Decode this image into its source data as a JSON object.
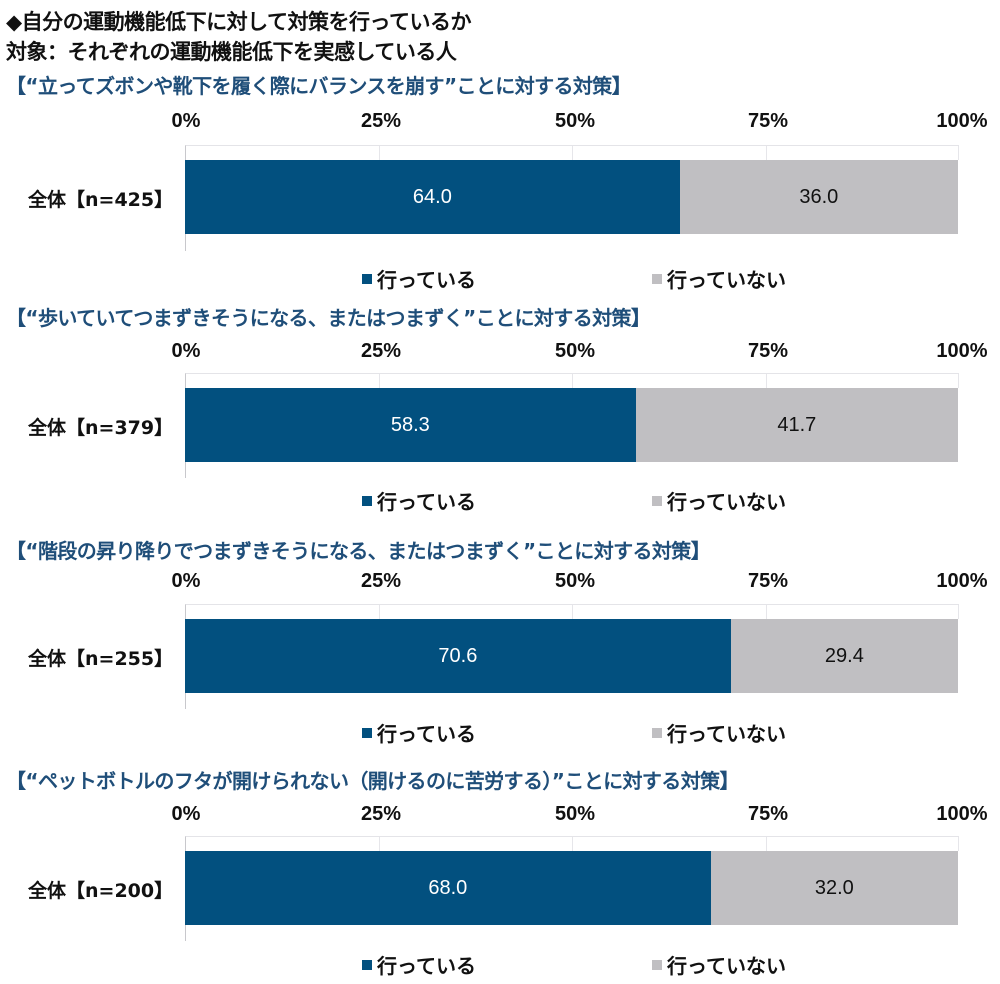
{
  "header": {
    "title": "◆自分の運動機能低下に対して対策を行っているか",
    "subtitle": "対象：それぞれの運動機能低下を実感している人"
  },
  "colors": {
    "doing": "#02507F",
    "not_doing": "#C0BFC2",
    "section_title": "#1F4E79"
  },
  "axis": {
    "ticks": [
      "0%",
      "25%",
      "50%",
      "75%",
      "100%"
    ]
  },
  "legend": {
    "doing": "行っている",
    "not_doing": "行っていない"
  },
  "sections": [
    {
      "title": "【“立ってズボンや靴下を履く際にバランスを崩す”ことに対する対策】",
      "row_label": "全体【n=425】",
      "doing": "64.0",
      "not_doing": "36.0"
    },
    {
      "title": "【“歩いていてつまずきそうになる、またはつまずく”ことに対する対策】",
      "row_label": "全体【n=379】",
      "doing": "58.3",
      "not_doing": "41.7"
    },
    {
      "title": "【“階段の昇り降りでつまずきそうになる、またはつまずく”ことに対する対策】",
      "row_label": "全体【n=255】",
      "doing": "70.6",
      "not_doing": "29.4"
    },
    {
      "title": "【“ペットボトルのフタが開けられない（開けるのに苦労する）”ことに対する対策】",
      "row_label": "全体【n=200】",
      "doing": "68.0",
      "not_doing": "32.0"
    }
  ],
  "chart_data": [
    {
      "type": "bar",
      "orientation": "horizontal",
      "stacked": true,
      "title": "“立ってズボンや靴下を履く際にバランスを崩す”ことに対する対策",
      "categories": [
        "全体【n=425】"
      ],
      "series": [
        {
          "name": "行っている",
          "values": [
            64.0
          ]
        },
        {
          "name": "行っていない",
          "values": [
            36.0
          ]
        }
      ],
      "xlim": [
        0,
        100
      ],
      "xticks": [
        "0%",
        "25%",
        "50%",
        "75%",
        "100%"
      ],
      "legend_position": "bottom"
    },
    {
      "type": "bar",
      "orientation": "horizontal",
      "stacked": true,
      "title": "“歩いていてつまずきそうになる、またはつまずく”ことに対する対策",
      "categories": [
        "全体【n=379】"
      ],
      "series": [
        {
          "name": "行っている",
          "values": [
            58.3
          ]
        },
        {
          "name": "行っていない",
          "values": [
            41.7
          ]
        }
      ],
      "xlim": [
        0,
        100
      ],
      "xticks": [
        "0%",
        "25%",
        "50%",
        "75%",
        "100%"
      ],
      "legend_position": "bottom"
    },
    {
      "type": "bar",
      "orientation": "horizontal",
      "stacked": true,
      "title": "“階段の昇り降りでつまずきそうになる、またはつまずく”ことに対する対策",
      "categories": [
        "全体【n=255】"
      ],
      "series": [
        {
          "name": "行っている",
          "values": [
            70.6
          ]
        },
        {
          "name": "行っていない",
          "values": [
            29.4
          ]
        }
      ],
      "xlim": [
        0,
        100
      ],
      "xticks": [
        "0%",
        "25%",
        "50%",
        "75%",
        "100%"
      ],
      "legend_position": "bottom"
    },
    {
      "type": "bar",
      "orientation": "horizontal",
      "stacked": true,
      "title": "“ペットボトルのフタが開けられない（開けるのに苦労する）”ことに対する対策",
      "categories": [
        "全体【n=200】"
      ],
      "series": [
        {
          "name": "行っている",
          "values": [
            68.0
          ]
        },
        {
          "name": "行っていない",
          "values": [
            32.0
          ]
        }
      ],
      "xlim": [
        0,
        100
      ],
      "xticks": [
        "0%",
        "25%",
        "50%",
        "75%",
        "100%"
      ],
      "legend_position": "bottom"
    }
  ]
}
